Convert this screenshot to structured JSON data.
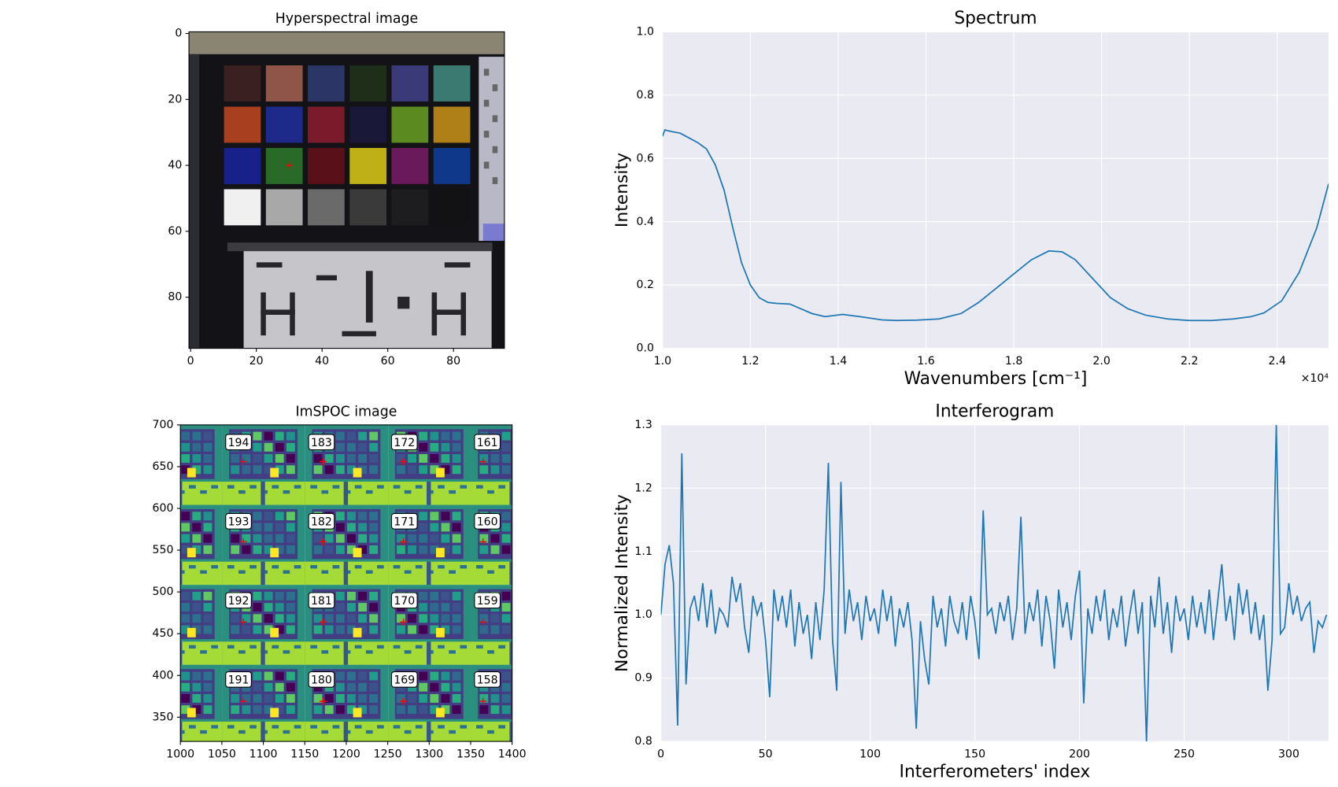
{
  "chart_data": [
    {
      "type": "image",
      "title": "Hyperspectral image",
      "xlim": [
        -0.5,
        95.5
      ],
      "ylim": [
        95.5,
        -0.5
      ],
      "xticks": [
        0,
        20,
        40,
        60,
        80
      ],
      "yticks": [
        0,
        20,
        40,
        60,
        80
      ],
      "points": {
        "x": [
          30
        ],
        "y": [
          40
        ],
        "color": "#ff0000"
      }
    },
    {
      "type": "image",
      "title": "ImSPOC image",
      "xlim": [
        1000,
        1400
      ],
      "ylim": [
        321,
        700
      ],
      "xticks": [
        1000,
        1050,
        1100,
        1150,
        1200,
        1250,
        1300,
        1350,
        1400
      ],
      "yticks": [
        350,
        400,
        450,
        500,
        550,
        600,
        650,
        700
      ],
      "labels": [
        [
          194,
          183,
          172,
          161
        ],
        [
          193,
          182,
          171,
          160
        ],
        [
          192,
          181,
          170,
          159
        ],
        [
          191,
          180,
          169,
          158
        ]
      ],
      "points": {
        "x": [
          1076,
          1172,
          1269,
          1365,
          1076,
          1172,
          1269,
          1365,
          1076,
          1172,
          1269,
          1365,
          1076,
          1172,
          1269,
          1365
        ],
        "y": [
          656,
          656,
          656,
          656,
          560,
          560,
          560,
          560,
          464,
          464,
          464,
          464,
          369,
          369,
          369,
          369
        ],
        "color": "#ff0000"
      }
    },
    {
      "type": "line",
      "title": "Spectrum",
      "xlabel": "Wavenumbers [cm⁻¹]",
      "ylabel": "Intensity",
      "x_offset_label": "×10⁴",
      "grid": true,
      "color": "#1f77b4",
      "xlim": [
        10000,
        25170
      ],
      "ylim": [
        0,
        1
      ],
      "xticks": [
        {
          "value": 10000,
          "label": "1.0"
        },
        {
          "value": 12000,
          "label": "1.2"
        },
        {
          "value": 14000,
          "label": "1.4"
        },
        {
          "value": 16000,
          "label": "1.6"
        },
        {
          "value": 18000,
          "label": "1.8"
        },
        {
          "value": 20000,
          "label": "2.0"
        },
        {
          "value": 22000,
          "label": "2.2"
        },
        {
          "value": 24000,
          "label": "2.4"
        }
      ],
      "yticks": [
        {
          "value": 0,
          "label": "0.0"
        },
        0.2,
        0.4,
        0.6,
        0.8,
        {
          "value": 1,
          "label": "1.0"
        }
      ],
      "x": [
        10000,
        10050,
        10200,
        10400,
        10600,
        10800,
        11000,
        11200,
        11400,
        11600,
        11800,
        12000,
        12200,
        12400,
        12600,
        12900,
        13100,
        13400,
        13700,
        14100,
        14500,
        15000,
        15350,
        15800,
        16300,
        16800,
        17200,
        17600,
        18000,
        18400,
        18800,
        19100,
        19400,
        19800,
        20200,
        20600,
        21000,
        21500,
        22000,
        22500,
        23000,
        23400,
        23700,
        24100,
        24500,
        24900,
        25170
      ],
      "values": [
        0.67,
        0.69,
        0.685,
        0.68,
        0.665,
        0.65,
        0.63,
        0.58,
        0.5,
        0.38,
        0.27,
        0.2,
        0.16,
        0.145,
        0.142,
        0.14,
        0.128,
        0.11,
        0.1,
        0.107,
        0.1,
        0.09,
        0.088,
        0.089,
        0.093,
        0.11,
        0.145,
        0.19,
        0.235,
        0.28,
        0.308,
        0.305,
        0.28,
        0.22,
        0.16,
        0.125,
        0.105,
        0.093,
        0.088,
        0.088,
        0.093,
        0.1,
        0.112,
        0.15,
        0.24,
        0.38,
        0.52
      ]
    },
    {
      "type": "line",
      "title": "Interferogram",
      "xlabel": "Interferometers' index",
      "ylabel": "Normalized Intensity",
      "grid": true,
      "color": "#1f77b4",
      "xlim": [
        0,
        319
      ],
      "ylim": [
        0.8,
        1.3
      ],
      "xticks": [
        0,
        50,
        100,
        150,
        200,
        250,
        300
      ],
      "yticks": [
        0.8,
        0.9,
        {
          "value": 1,
          "label": "1.0"
        },
        1.1,
        1.2,
        1.3
      ],
      "x": [
        0,
        2,
        4,
        6,
        8,
        10,
        12,
        14,
        16,
        18,
        20,
        22,
        24,
        26,
        28,
        30,
        32,
        34,
        36,
        38,
        40,
        42,
        44,
        46,
        48,
        50,
        52,
        54,
        56,
        58,
        60,
        62,
        64,
        66,
        68,
        70,
        72,
        74,
        76,
        78,
        80,
        82,
        84,
        86,
        88,
        90,
        92,
        94,
        96,
        98,
        100,
        102,
        104,
        106,
        108,
        110,
        112,
        114,
        116,
        118,
        120,
        122,
        124,
        126,
        128,
        130,
        132,
        134,
        136,
        138,
        140,
        142,
        144,
        146,
        148,
        150,
        152,
        154,
        156,
        158,
        160,
        162,
        164,
        166,
        168,
        170,
        172,
        174,
        176,
        178,
        180,
        182,
        184,
        186,
        188,
        190,
        192,
        194,
        196,
        198,
        200,
        202,
        204,
        206,
        208,
        210,
        212,
        214,
        216,
        218,
        220,
        222,
        224,
        226,
        228,
        230,
        232,
        234,
        236,
        238,
        240,
        242,
        244,
        246,
        248,
        250,
        252,
        254,
        256,
        258,
        260,
        262,
        264,
        266,
        268,
        270,
        272,
        274,
        276,
        278,
        280,
        282,
        284,
        286,
        288,
        290,
        292,
        294,
        296,
        298,
        300,
        302,
        304,
        306,
        308,
        310,
        312,
        314,
        316,
        318
      ],
      "values": [
        1.0,
        1.08,
        1.11,
        1.05,
        0.825,
        1.255,
        0.89,
        1.01,
        1.03,
        0.99,
        1.05,
        0.98,
        1.04,
        0.97,
        1.01,
        1.0,
        0.98,
        1.06,
        1.02,
        1.05,
        0.98,
        0.94,
        1.03,
        1.0,
        1.02,
        0.96,
        0.87,
        1.04,
        0.99,
        1.03,
        0.98,
        1.04,
        0.95,
        1.02,
        0.97,
        1.0,
        0.93,
        1.02,
        0.96,
        1.04,
        1.24,
        0.96,
        0.88,
        1.21,
        0.97,
        1.04,
        0.99,
        1.02,
        0.96,
        1.03,
        0.99,
        1.01,
        0.97,
        1.04,
        0.99,
        1.03,
        0.95,
        1.01,
        0.98,
        1.02,
        0.96,
        0.82,
        0.99,
        0.93,
        0.89,
        1.03,
        0.98,
        1.01,
        0.95,
        1.03,
        0.99,
        0.97,
        1.02,
        0.96,
        1.03,
        0.99,
        0.93,
        1.165,
        1.0,
        1.01,
        0.97,
        1.02,
        0.99,
        1.03,
        0.96,
        1.01,
        1.155,
        0.97,
        1.02,
        0.99,
        1.04,
        0.95,
        1.03,
        0.99,
        0.915,
        1.04,
        0.98,
        1.02,
        0.96,
        1.03,
        1.07,
        0.86,
        1.01,
        0.97,
        1.03,
        0.99,
        1.04,
        0.96,
        1.01,
        0.98,
        1.03,
        0.95,
        1.0,
        1.04,
        0.97,
        1.02,
        0.8,
        1.03,
        0.98,
        1.06,
        0.97,
        1.02,
        0.94,
        1.03,
        0.99,
        1.01,
        0.96,
        1.03,
        0.98,
        1.02,
        0.97,
        1.04,
        0.96,
        1.02,
        1.08,
        0.99,
        1.03,
        0.96,
        1.05,
        1.0,
        1.04,
        0.97,
        1.02,
        0.96,
        1.0,
        0.88,
        0.96,
        1.3,
        0.97,
        0.98,
        1.05,
        1.0,
        1.03,
        0.99,
        1.01,
        1.02,
        0.94,
        0.99,
        0.98,
        1.0
      ]
    }
  ]
}
